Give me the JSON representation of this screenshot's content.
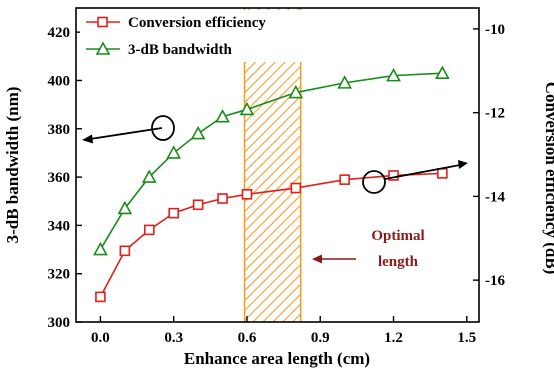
{
  "chart_data": {
    "type": "line",
    "xlabel": "Enhance area length (cm)",
    "ylabel_left": "3-dB bandwidth (nm)",
    "ylabel_right": "Conversion efficiency (dB)",
    "xlim": [
      -0.1,
      1.55
    ],
    "ylim_left": [
      300,
      430
    ],
    "ylim_right": [
      -17.0,
      -9.5
    ],
    "x_ticks": [
      "0.0",
      "0.3",
      "0.6",
      "0.9",
      "1.2",
      "1.5"
    ],
    "y_left_ticks": [
      "300",
      "320",
      "340",
      "360",
      "380",
      "400",
      "420"
    ],
    "y_right_ticks": [
      "-16",
      "-14",
      "-12",
      "-10"
    ],
    "grid": false,
    "legend_position": "top-left",
    "series": [
      {
        "name": "Conversion efficiency",
        "axis": "right",
        "color": "#e0201b",
        "marker": "square",
        "x": [
          0.0,
          0.1,
          0.2,
          0.3,
          0.4,
          0.5,
          0.6,
          0.8,
          1.0,
          1.2,
          1.4
        ],
        "y": [
          -16.4,
          -15.3,
          -14.8,
          -14.4,
          -14.2,
          -14.05,
          -13.95,
          -13.8,
          -13.6,
          -13.5,
          -13.45
        ]
      },
      {
        "name": "3-dB bandwidth",
        "axis": "left",
        "color": "#1a8c1a",
        "marker": "triangle",
        "x": [
          0.0,
          0.1,
          0.2,
          0.3,
          0.4,
          0.5,
          0.6,
          0.8,
          1.0,
          1.2,
          1.4
        ],
        "y": [
          330,
          347,
          360,
          370,
          378,
          385,
          388,
          395,
          399,
          402,
          403
        ]
      }
    ],
    "optimal_region": {
      "x_range": [
        0.59,
        0.82
      ],
      "color": "#f0a030"
    },
    "annotation": {
      "line1": "Optimal",
      "line2": "length",
      "color": "#8b1a1a"
    }
  }
}
